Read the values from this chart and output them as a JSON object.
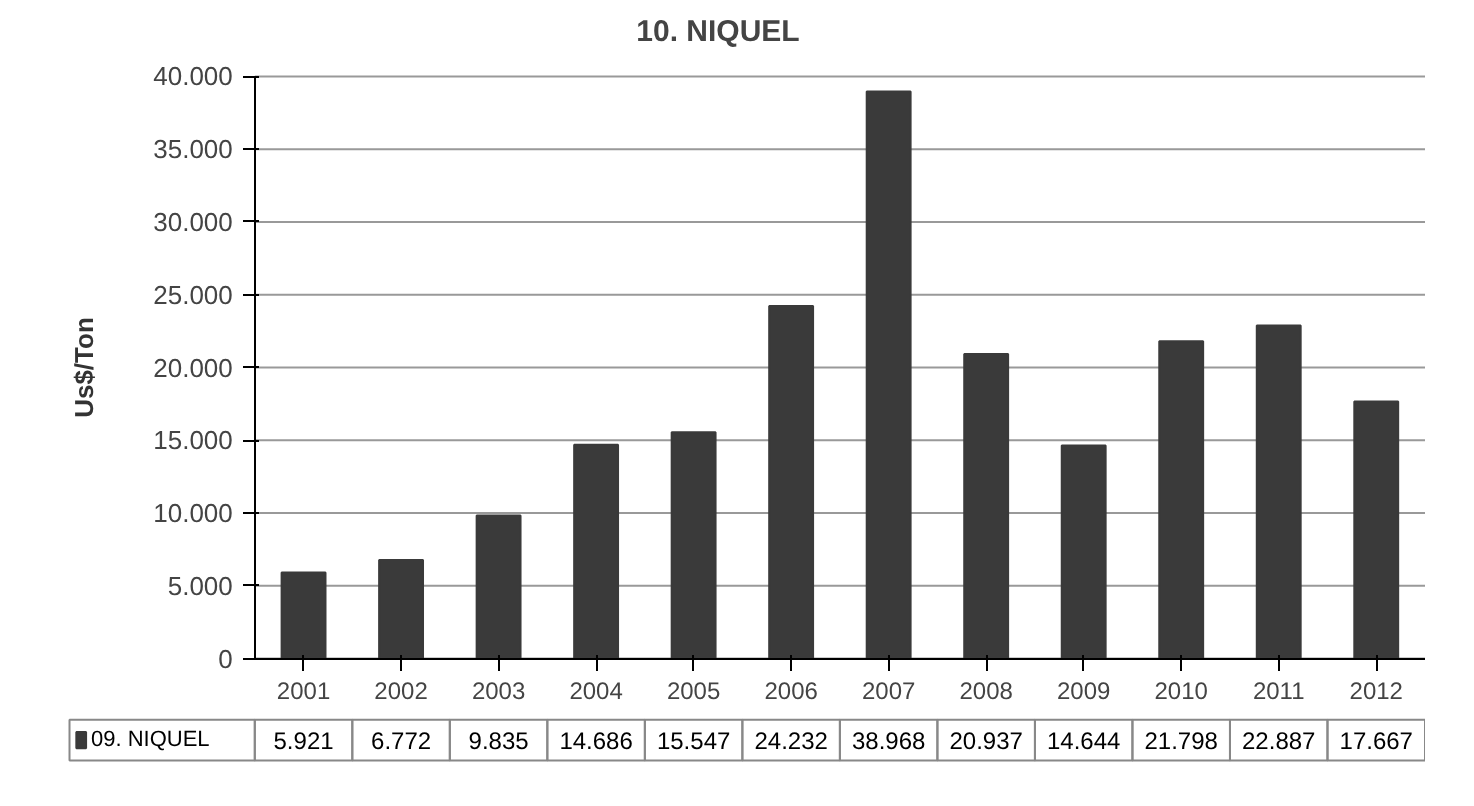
{
  "chart_data": {
    "type": "bar",
    "title": "10. NIQUEL",
    "ylabel": "Us$/Ton",
    "categories": [
      "2001",
      "2002",
      "2003",
      "2004",
      "2005",
      "2006",
      "2007",
      "2008",
      "2009",
      "2010",
      "2011",
      "2012"
    ],
    "series": [
      {
        "name": "09. NIQUEL",
        "color": "#3a3a3a",
        "values": [
          5921,
          6772,
          9835,
          14686,
          15547,
          24232,
          38968,
          20937,
          14644,
          21798,
          22887,
          17667
        ],
        "value_labels": [
          "5.921",
          "6.772",
          "9.835",
          "14.686",
          "15.547",
          "24.232",
          "38.968",
          "20.937",
          "14.644",
          "21.798",
          "22.887",
          "17.667"
        ]
      }
    ],
    "ylim": [
      0,
      40000
    ],
    "yticks": [
      {
        "value": 0,
        "label": "0"
      },
      {
        "value": 5000,
        "label": "5.000"
      },
      {
        "value": 10000,
        "label": "10.000"
      },
      {
        "value": 15000,
        "label": "15.000"
      },
      {
        "value": 20000,
        "label": "20.000"
      },
      {
        "value": 25000,
        "label": "25.000"
      },
      {
        "value": 30000,
        "label": "30.000"
      },
      {
        "value": 35000,
        "label": "35.000"
      },
      {
        "value": 40000,
        "label": "40.000"
      }
    ],
    "grid": "y",
    "legend": "bottom"
  }
}
